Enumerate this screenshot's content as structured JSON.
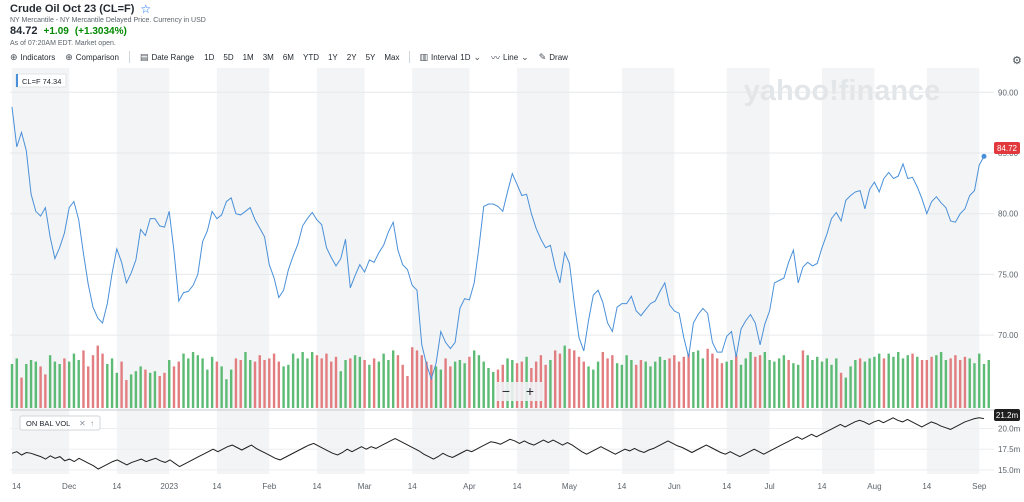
{
  "header": {
    "title": "Crude Oil Oct 23 (CL=F)",
    "subtitle": "NY Mercantile - NY Mercantile Delayed Price. Currency in USD",
    "price": "84.72",
    "change": "+1.09",
    "change_pct": "(+1.3034%)",
    "as_of": "As of 07:20AM EDT. Market open."
  },
  "toolbar": {
    "indicators": "Indicators",
    "comparison": "Comparison",
    "date_range": "Date Range",
    "ranges": [
      "1D",
      "5D",
      "1M",
      "3M",
      "6M",
      "YTD",
      "1Y",
      "2Y",
      "5Y",
      "Max"
    ],
    "interval_label": "Interval",
    "interval_value": "1D",
    "line_label": "Line",
    "draw_label": "Draw"
  },
  "colors": {
    "line": "#4a90d9",
    "volume_up": "#5dbb75",
    "volume_down": "#e27d80",
    "obv": "#1f1f1f",
    "price_tag": "#e0383c",
    "watermark": "#e3e6e9"
  },
  "watermark": "yahoo!finance",
  "legend_tag": "CL=F 74.34",
  "zoom": {
    "minus": "−",
    "plus": "+"
  },
  "obv_label": "ON BAL VOL",
  "last_price_tag": "84.72",
  "obv_last_tag": "21.2m",
  "chart_data": [
    {
      "type": "line",
      "title": "Crude Oil Oct 23 (CL=F)",
      "ylim": [
        64,
        92
      ],
      "y_ticks": [
        "90.00",
        "85.00",
        "80.00",
        "75.00",
        "70.00"
      ],
      "y_tick_values": [
        90,
        85,
        80,
        75,
        70
      ],
      "x_labels": [
        "14",
        "Dec",
        "14",
        "2023",
        "14",
        "Feb",
        "14",
        "Mar",
        "14",
        "Apr",
        "14",
        "May",
        "14",
        "Jun",
        "14",
        "Jul",
        "14",
        "Aug",
        "14",
        "Sep"
      ],
      "x_label_index": [
        0,
        12,
        22,
        33,
        43,
        54,
        64,
        74,
        84,
        96,
        106,
        117,
        128,
        139,
        150,
        159,
        170,
        181,
        192,
        203
      ],
      "series": [
        {
          "values": [
            88.8,
            85.5,
            86.7,
            85.2,
            81.6,
            80.2,
            79.8,
            80.5,
            78.1,
            76.3,
            77.2,
            78.4,
            80.5,
            81.0,
            79.5,
            76.7,
            74.2,
            72.3,
            71.4,
            71.0,
            72.6,
            75.1,
            77.1,
            76.0,
            74.3,
            75.1,
            76.2,
            78.7,
            78.2,
            79.6,
            79.6,
            79.0,
            78.9,
            80.2,
            76.9,
            72.8,
            73.5,
            73.6,
            74.1,
            75.0,
            77.7,
            78.6,
            80.2,
            79.6,
            79.9,
            81.0,
            81.3,
            80.0,
            79.9,
            80.2,
            80.5,
            79.5,
            78.8,
            78.1,
            75.8,
            74.7,
            73.1,
            73.7,
            75.4,
            76.5,
            77.5,
            79.0,
            79.6,
            80.1,
            79.5,
            79.1,
            77.2,
            76.4,
            75.7,
            76.3,
            77.9,
            73.9,
            74.9,
            75.8,
            75.2,
            76.2,
            76.0,
            76.8,
            77.4,
            78.5,
            79.3,
            77.0,
            75.8,
            75.4,
            74.1,
            73.7,
            69.2,
            67.6,
            66.4,
            67.7,
            70.3,
            69.4,
            68.9,
            69.4,
            72.2,
            73.0,
            72.9,
            74.3,
            77.2,
            80.6,
            80.8,
            80.8,
            80.6,
            80.2,
            81.8,
            83.3,
            82.4,
            81.5,
            81.6,
            80.0,
            78.8,
            77.9,
            77.2,
            77.4,
            75.6,
            74.3,
            76.8,
            75.9,
            72.7,
            69.8,
            68.7,
            71.2,
            73.3,
            73.7,
            72.7,
            71.0,
            70.3,
            72.3,
            72.6,
            72.6,
            73.2,
            72.0,
            71.6,
            72.1,
            72.6,
            72.8,
            73.6,
            74.3,
            72.5,
            72.0,
            71.8,
            69.8,
            68.2,
            71.0,
            71.7,
            72.2,
            71.8,
            69.4,
            68.6,
            68.6,
            69.9,
            70.3,
            68.2,
            70.5,
            71.2,
            71.7,
            71.0,
            69.2,
            70.9,
            72.0,
            74.3,
            74.5,
            74.7,
            76.0,
            77.0,
            74.3,
            75.6,
            76.0,
            75.7,
            75.9,
            77.2,
            78.3,
            79.6,
            80.1,
            79.4,
            81.1,
            81.5,
            81.8,
            81.9,
            80.4,
            82.0,
            82.6,
            81.8,
            82.9,
            83.4,
            82.9,
            83.1,
            84.1,
            82.9,
            83.0,
            82.2,
            81.2,
            80.0,
            81.0,
            81.4,
            80.9,
            80.5,
            79.4,
            79.3,
            80.0,
            80.4,
            81.5,
            81.9,
            84.0,
            84.72
          ]
        }
      ]
    },
    {
      "type": "bar",
      "title": "Volume",
      "note": "green = up day, red = down day",
      "values": [
        0.55,
        0.62,
        0.38,
        0.55,
        0.6,
        0.58,
        0.52,
        0.42,
        0.66,
        0.58,
        0.55,
        0.62,
        0.58,
        0.68,
        0.6,
        0.72,
        0.52,
        0.66,
        0.78,
        0.68,
        0.55,
        0.62,
        0.44,
        0.58,
        0.35,
        0.42,
        0.46,
        0.52,
        0.48,
        0.44,
        0.46,
        0.4,
        0.44,
        0.6,
        0.52,
        0.58,
        0.68,
        0.62,
        0.7,
        0.66,
        0.62,
        0.48,
        0.64,
        0.58,
        0.52,
        0.36,
        0.48,
        0.62,
        0.6,
        0.7,
        0.6,
        0.58,
        0.66,
        0.6,
        0.62,
        0.68,
        0.58,
        0.52,
        0.54,
        0.68,
        0.62,
        0.7,
        0.62,
        0.7,
        0.66,
        0.62,
        0.68,
        0.58,
        0.64,
        0.46,
        0.6,
        0.62,
        0.66,
        0.64,
        0.6,
        0.54,
        0.62,
        0.58,
        0.68,
        0.6,
        0.72,
        0.66,
        0.54,
        0.4,
        0.76,
        0.72,
        0.66,
        0.58,
        0.54,
        0.52,
        0.48,
        0.62,
        0.52,
        0.58,
        0.6,
        0.56,
        0.64,
        0.72,
        0.66,
        0.58,
        0.5,
        0.45,
        0.48,
        0.54,
        0.62,
        0.6,
        0.56,
        0.58,
        0.64,
        0.5,
        0.58,
        0.66,
        0.54,
        0.6,
        0.72,
        0.68,
        0.78,
        0.74,
        0.72,
        0.64,
        0.58,
        0.52,
        0.48,
        0.58,
        0.7,
        0.62,
        0.66,
        0.56,
        0.54,
        0.66,
        0.6,
        0.54,
        0.6,
        0.58,
        0.52,
        0.58,
        0.64,
        0.6,
        0.62,
        0.66,
        0.58,
        0.64,
        0.68,
        0.7,
        0.72,
        0.62,
        0.74,
        0.68,
        0.62,
        0.56,
        0.58,
        0.6,
        0.66,
        0.54,
        0.62,
        0.7,
        0.64,
        0.66,
        0.7,
        0.6,
        0.58,
        0.62,
        0.66,
        0.6,
        0.56,
        0.54,
        0.72,
        0.66,
        0.6,
        0.64,
        0.58,
        0.62,
        0.54,
        0.62,
        0.44,
        0.38,
        0.52,
        0.6,
        0.62,
        0.58,
        0.62,
        0.64,
        0.68,
        0.62,
        0.68,
        0.64,
        0.7,
        0.62,
        0.66,
        0.68,
        0.64,
        0.6,
        0.6,
        0.64,
        0.66,
        0.7,
        0.6,
        0.62,
        0.66,
        0.6,
        0.64,
        0.62,
        0.56,
        0.68,
        0.55,
        0.6
      ],
      "up": [
        1,
        1,
        0,
        1,
        1,
        1,
        0,
        0,
        1,
        1,
        1,
        0,
        1,
        1,
        1,
        0,
        0,
        0,
        0,
        0,
        1,
        1,
        1,
        0,
        0,
        1,
        1,
        1,
        0,
        1,
        1,
        0,
        0,
        1,
        0,
        0,
        1,
        1,
        1,
        1,
        1,
        1,
        1,
        0,
        1,
        1,
        1,
        0,
        0,
        1,
        1,
        0,
        0,
        0,
        0,
        0,
        0,
        1,
        1,
        1,
        1,
        1,
        1,
        1,
        0,
        0,
        0,
        0,
        0,
        1,
        1,
        0,
        1,
        1,
        0,
        1,
        0,
        1,
        1,
        1,
        1,
        0,
        0,
        0,
        0,
        0,
        0,
        0,
        0,
        1,
        1,
        0,
        0,
        1,
        1,
        1,
        0,
        1,
        1,
        1,
        1,
        1,
        0,
        0,
        1,
        1,
        0,
        0,
        1,
        0,
        0,
        0,
        0,
        1,
        0,
        0,
        1,
        0,
        0,
        0,
        0,
        1,
        1,
        1,
        0,
        0,
        0,
        1,
        1,
        1,
        1,
        0,
        0,
        1,
        1,
        1,
        1,
        1,
        0,
        0,
        0,
        0,
        0,
        1,
        1,
        1,
        0,
        0,
        0,
        0,
        1,
        1,
        0,
        1,
        1,
        1,
        0,
        0,
        1,
        1,
        1,
        1,
        1,
        0,
        1,
        1,
        0,
        1,
        1,
        1,
        1,
        1,
        1,
        1,
        0,
        1,
        1,
        1,
        0,
        1,
        1,
        1,
        1,
        0,
        1,
        1,
        1,
        1,
        1,
        0,
        1,
        0,
        0,
        0,
        1,
        1,
        1,
        0,
        0,
        0,
        0,
        1,
        1,
        1,
        1,
        1
      ]
    },
    {
      "type": "line",
      "title": "ON BAL VOL",
      "ylim": [
        14.5,
        22.0
      ],
      "y_ticks": [
        "20.0m",
        "17.5m",
        "15.0m"
      ],
      "y_tick_values": [
        20.0,
        17.5,
        15.0
      ],
      "series": [
        {
          "name": "ON BAL VOL",
          "values": [
            17.0,
            17.2,
            16.8,
            17.1,
            17.0,
            16.8,
            16.6,
            16.3,
            16.7,
            16.4,
            16.6,
            16.1,
            16.3,
            16.0,
            16.4,
            16.1,
            15.8,
            15.5,
            15.1,
            15.4,
            15.7,
            16.0,
            16.2,
            15.9,
            15.6,
            15.9,
            16.1,
            16.3,
            16.0,
            16.2,
            16.4,
            16.1,
            15.9,
            16.2,
            15.8,
            15.4,
            15.7,
            16.0,
            16.3,
            16.6,
            16.9,
            17.2,
            17.5,
            17.2,
            17.5,
            17.8,
            18.0,
            17.7,
            17.4,
            17.7,
            18.0,
            17.6,
            17.3,
            17.0,
            16.7,
            16.4,
            16.2,
            16.5,
            16.8,
            17.1,
            17.4,
            17.7,
            18.0,
            18.2,
            17.9,
            17.6,
            17.3,
            17.0,
            16.8,
            17.1,
            17.5,
            17.2,
            17.5,
            17.8,
            17.5,
            17.8,
            17.6,
            17.9,
            18.2,
            18.5,
            18.8,
            18.5,
            18.2,
            17.9,
            17.6,
            17.3,
            16.9,
            16.6,
            16.3,
            16.6,
            17.0,
            16.7,
            16.5,
            16.8,
            17.1,
            17.4,
            17.2,
            17.5,
            17.8,
            18.1,
            18.4,
            18.3,
            18.1,
            18.4,
            18.7,
            18.5,
            18.2,
            18.5,
            18.2,
            18.0,
            18.3,
            18.6,
            18.3,
            18.6,
            18.3,
            18.0,
            18.3,
            18.0,
            17.6,
            17.2,
            16.9,
            17.2,
            17.5,
            17.8,
            17.5,
            17.2,
            16.9,
            17.2,
            17.5,
            17.3,
            17.6,
            17.3,
            17.1,
            17.4,
            17.6,
            17.9,
            18.2,
            18.5,
            18.2,
            17.9,
            17.7,
            17.4,
            17.1,
            17.4,
            17.7,
            18.0,
            17.7,
            17.4,
            17.1,
            16.9,
            17.2,
            16.9,
            16.6,
            16.9,
            17.2,
            17.5,
            17.2,
            16.9,
            17.2,
            17.5,
            17.8,
            18.1,
            18.4,
            18.7,
            19.0,
            18.7,
            19.0,
            19.3,
            19.0,
            19.3,
            19.6,
            19.9,
            20.2,
            20.5,
            20.2,
            20.5,
            20.8,
            21.0,
            20.8,
            20.5,
            20.8,
            21.0,
            20.7,
            21.0,
            21.3,
            21.0,
            20.8,
            21.1,
            20.8,
            20.5,
            20.2,
            20.5,
            20.8,
            20.6,
            20.3,
            20.1,
            19.9,
            20.2,
            20.5,
            20.8,
            21.0,
            21.2,
            21.3,
            21.2
          ]
        }
      ]
    }
  ]
}
